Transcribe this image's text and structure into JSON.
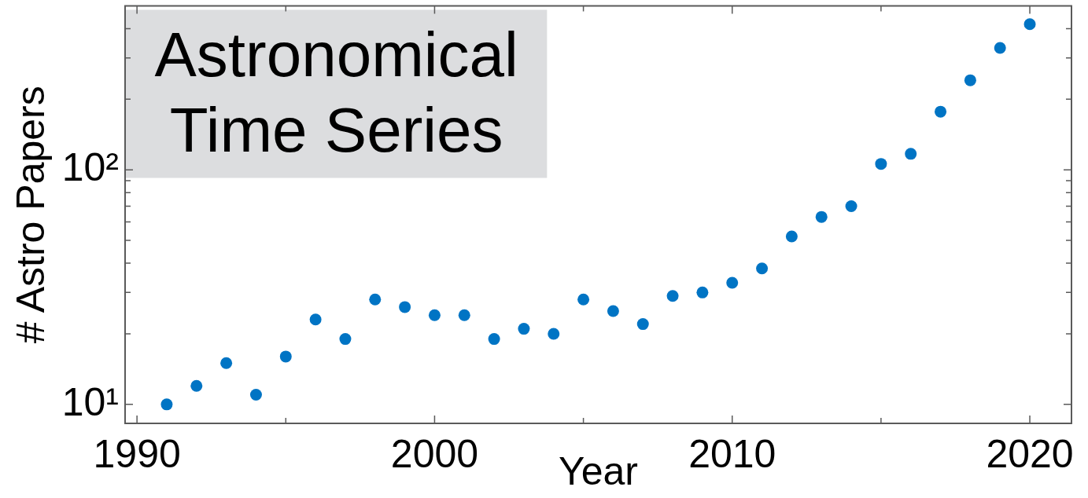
{
  "chart_data": {
    "type": "scatter",
    "xlabel": "Year",
    "ylabel": "# Astro Papers",
    "annotations": [
      "Astronomical Time Series"
    ],
    "x": [
      1991,
      1992,
      1993,
      1994,
      1995,
      1996,
      1997,
      1998,
      1999,
      2000,
      2001,
      2002,
      2003,
      2004,
      2005,
      2006,
      2007,
      2008,
      2009,
      2010,
      2011,
      2012,
      2013,
      2014,
      2015,
      2016,
      2017,
      2018,
      2019,
      2020
    ],
    "series": [
      {
        "color": "#0074c4",
        "values": [
          10,
          12,
          15,
          11,
          16,
          23,
          19,
          28,
          26,
          24,
          24,
          19,
          21,
          20,
          28,
          25,
          22,
          29,
          30,
          33,
          38,
          52,
          63,
          70,
          106,
          117,
          177,
          241,
          331,
          418
        ]
      }
    ],
    "marker": "circle",
    "log": true,
    "grid": false,
    "legend": false,
    "xlim": [
      1989.6,
      2021.4
    ],
    "ylim": [
      8.3,
      500
    ],
    "xticks": [
      1990,
      {
        "value": 1995,
        "label": null
      },
      2000,
      {
        "value": 2005,
        "label": null
      },
      2010,
      {
        "value": 2015,
        "label": null
      },
      2020
    ],
    "yticks": [
      {
        "value": 10,
        "label": "10¹"
      },
      {
        "value": 20,
        "label": null
      },
      {
        "value": 30,
        "label": null
      },
      {
        "value": 40,
        "label": null
      },
      {
        "value": 50,
        "label": null
      },
      {
        "value": 60,
        "label": null
      },
      {
        "value": 70,
        "label": null
      },
      {
        "value": 80,
        "label": null
      },
      {
        "value": 90,
        "label": null
      },
      {
        "value": 100,
        "label": "10²"
      },
      {
        "value": 200,
        "label": null
      },
      {
        "value": 300,
        "label": null
      },
      {
        "value": 400,
        "label": null
      }
    ]
  }
}
